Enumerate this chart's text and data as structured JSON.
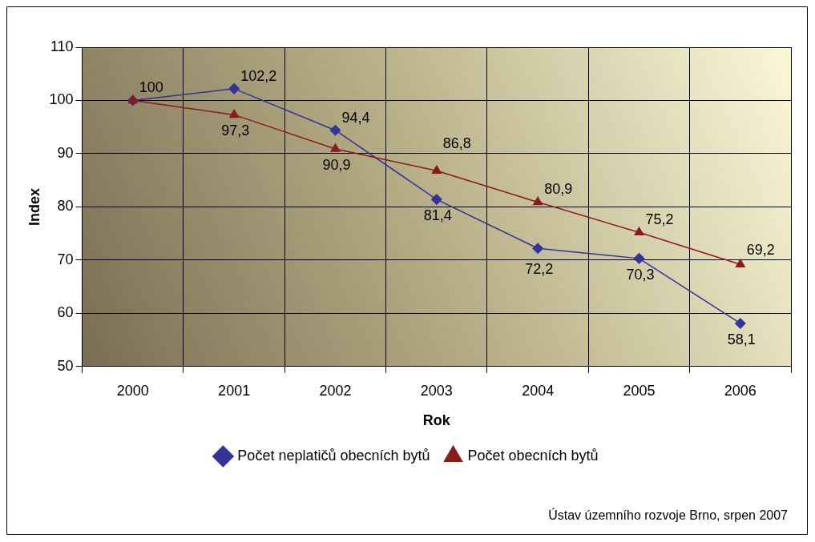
{
  "chart_data": {
    "type": "line",
    "xlabel": "Rok",
    "ylabel": "Index",
    "categories": [
      "2000",
      "2001",
      "2002",
      "2003",
      "2004",
      "2005",
      "2006"
    ],
    "series": [
      {
        "name": "Počet neplatičů obecních bytů",
        "color": "#333399",
        "marker": "diamond",
        "values": [
          100,
          102.2,
          94.4,
          81.4,
          72.2,
          70.3,
          58.1
        ],
        "value_labels": [
          "100",
          "102,2",
          "94,4",
          "81,4",
          "72,2",
          "70,3",
          "58,1"
        ]
      },
      {
        "name": "Počet obecních bytů",
        "color": "#8b1a1a",
        "marker": "triangle",
        "values": [
          100,
          97.3,
          90.9,
          86.8,
          80.9,
          75.2,
          69.2
        ],
        "value_labels": [
          null,
          "97,3",
          "90,9",
          "86,8",
          "80,9",
          "75,2",
          "69,2"
        ]
      }
    ],
    "ylim": [
      50,
      110
    ],
    "yticks": [
      50,
      60,
      70,
      80,
      90,
      100,
      110
    ],
    "grid": true,
    "legend": "bottom",
    "annotations": [
      "Ústav územního rozvoje Brno, srpen 2007"
    ]
  }
}
